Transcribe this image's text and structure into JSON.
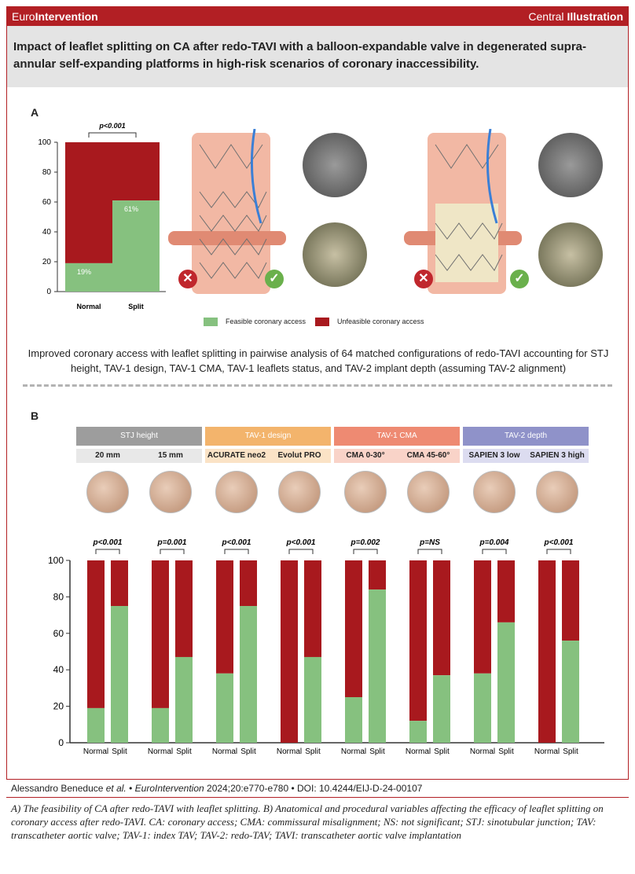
{
  "header": {
    "brand_prefix": "Euro",
    "brand_suffix": "Intervention",
    "central_prefix": "Central ",
    "central_suffix": "Illustration",
    "title": "Impact of leaflet splitting on CA after redo-TAVI with a balloon-expandable valve in degenerated supra-annular self-expanding platforms in high-risk scenarios of coronary inaccessibility."
  },
  "panel_a": {
    "letter": "A",
    "pvalue": "p<0.001",
    "legend_feasible": "Feasible coronary access",
    "legend_unfeasible": "Unfeasible coronary access",
    "caption": "Improved coronary access with leaflet splitting in pairwise analysis of 64 matched configurations of redo-TAVI accounting for STJ height, TAV-1 design, TAV-1 CMA, TAV-1 leaflets status, and TAV-2 implant depth (assuming TAV-2 alignment)"
  },
  "panel_b": {
    "letter": "B",
    "groups": [
      {
        "name": "STJ height",
        "color": "#9d9d9d",
        "subs": [
          "20 mm",
          "15 mm"
        ]
      },
      {
        "name": "TAV-1 design",
        "color": "#f3b46c",
        "subs": [
          "ACURATE neo2",
          "Evolut PRO"
        ]
      },
      {
        "name": "TAV-1 CMA",
        "color": "#ee8a72",
        "subs": [
          "CMA 0-30°",
          "CMA 45-60°"
        ]
      },
      {
        "name": "TAV-2 depth",
        "color": "#8f92c9",
        "subs": [
          "SAPIEN 3 low",
          "SAPIEN 3 high"
        ]
      }
    ]
  },
  "colors": {
    "feasible": "#86c17f",
    "unfeasible": "#a8191e",
    "accent": "#b21f24"
  },
  "chart_data": [
    {
      "type": "bar",
      "stacked": true,
      "categories": [
        "Normal",
        "Split"
      ],
      "series": [
        {
          "name": "Feasible coronary access",
          "values": [
            19,
            61
          ]
        },
        {
          "name": "Unfeasible coronary access",
          "values": [
            81,
            39
          ]
        }
      ],
      "data_labels": [
        "19%",
        "61%"
      ],
      "yticks": [
        "0",
        "20",
        "40",
        "60",
        "80",
        "100"
      ],
      "ylim": [
        0,
        100
      ],
      "annotation": "p<0.001",
      "legend": "bottom"
    },
    {
      "type": "bar",
      "stacked": true,
      "yticks": [
        "0",
        "20",
        "40",
        "60",
        "80",
        "100"
      ],
      "ylim": [
        0,
        100
      ],
      "legend": "none",
      "panels": [
        {
          "label": "20 mm",
          "pvalue": "p<0.001",
          "categories": [
            "Normal",
            "Split"
          ],
          "feasible": [
            19,
            75
          ]
        },
        {
          "label": "15 mm",
          "pvalue": "p=0.001",
          "categories": [
            "Normal",
            "Split"
          ],
          "feasible": [
            19,
            47
          ]
        },
        {
          "label": "ACURATE neo2",
          "pvalue": "p<0.001",
          "categories": [
            "Normal",
            "Split"
          ],
          "feasible": [
            38,
            75
          ]
        },
        {
          "label": "Evolut PRO",
          "pvalue": "p<0.001",
          "categories": [
            "Normal",
            "Split"
          ],
          "feasible": [
            0,
            47
          ]
        },
        {
          "label": "CMA 0-30°",
          "pvalue": "p=0.002",
          "categories": [
            "Normal",
            "Split"
          ],
          "feasible": [
            25,
            84
          ]
        },
        {
          "label": "CMA 45-60°",
          "pvalue": "p=NS",
          "categories": [
            "Normal",
            "Split"
          ],
          "feasible": [
            12,
            37
          ]
        },
        {
          "label": "SAPIEN 3 low",
          "pvalue": "p=0.004",
          "categories": [
            "Normal",
            "Split"
          ],
          "feasible": [
            38,
            66
          ]
        },
        {
          "label": "SAPIEN 3 high",
          "pvalue": "p<0.001",
          "categories": [
            "Normal",
            "Split"
          ],
          "feasible": [
            0,
            56
          ]
        }
      ]
    }
  ],
  "footer": {
    "authors": "Alessandro Beneduce ",
    "etal": "et al.",
    "journal_sep": " • ",
    "journal": "EuroIntervention",
    "citation": " 2024;20:e770-e780 • DOI: 10.4244/EIJ-D-24-00107",
    "note": "A) The feasibility of CA after redo-TAVI with leaflet splitting. B) Anatomical and procedural variables affecting the efficacy of leaflet splitting on coronary access after redo-TAVI. CA: coronary access; CMA: commissural misalignment; NS: not significant; STJ: sinotubular junction; TAV: transcatheter aortic valve; TAV-1: index TAV; TAV-2: redo-TAV; TAVI: transcatheter aortic valve implantation"
  }
}
